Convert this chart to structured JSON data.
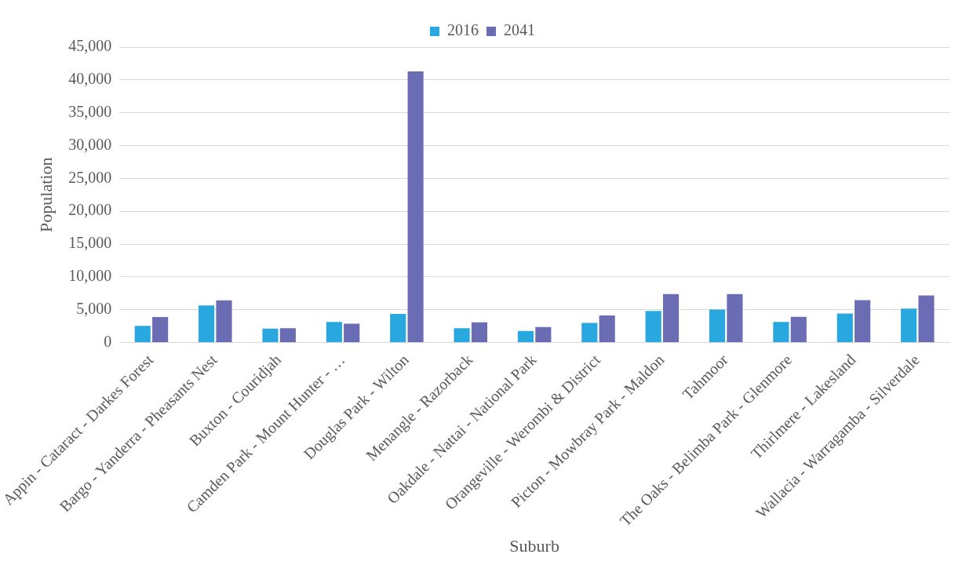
{
  "chart_data": {
    "type": "bar",
    "xlabel": "Suburb",
    "ylabel": "Population",
    "categories": [
      "Appin - Cataract - Darkes Forest",
      "Bargo - Yanderra - Pheasants Nest",
      "Buxton - Couridjah",
      "Camden Park - Mount Hunter - …",
      "Douglas Park - Wilton",
      "Menangle - Razorback",
      "Oakdale - Nattai - National Park",
      "Orangeville - Werombi & District",
      "Picton - Mowbray Park - Maldon",
      "Tahmoor",
      "The Oaks - Belimba Park - Glenmore",
      "Thirlmere - Lakesland",
      "Wallacia - Warragamba - Silverdale"
    ],
    "series": [
      {
        "name": "2016",
        "color": "#29a8e0",
        "values": [
          2550,
          5640,
          2130,
          3140,
          4360,
          2180,
          1770,
          2980,
          4810,
          5030,
          3150,
          4420,
          5190
        ]
      },
      {
        "name": "2041",
        "color": "#6a6db3",
        "values": [
          3880,
          6440,
          2180,
          2870,
          41300,
          3090,
          2380,
          4140,
          7400,
          7400,
          3920,
          6460,
          7180
        ]
      }
    ],
    "ylim": [
      0,
      45000
    ],
    "yticks": [
      {
        "value": 0,
        "label": "0"
      },
      {
        "value": 5000,
        "label": "5,000"
      },
      {
        "value": 10000,
        "label": "10,000"
      },
      {
        "value": 15000,
        "label": "15,000"
      },
      {
        "value": 20000,
        "label": "20,000"
      },
      {
        "value": 25000,
        "label": "25,000"
      },
      {
        "value": 30000,
        "label": "30,000"
      },
      {
        "value": 35000,
        "label": "35,000"
      },
      {
        "value": 40000,
        "label": "40,000"
      },
      {
        "value": 45000,
        "label": "45,000"
      }
    ],
    "grid": "y",
    "legend": "top"
  }
}
